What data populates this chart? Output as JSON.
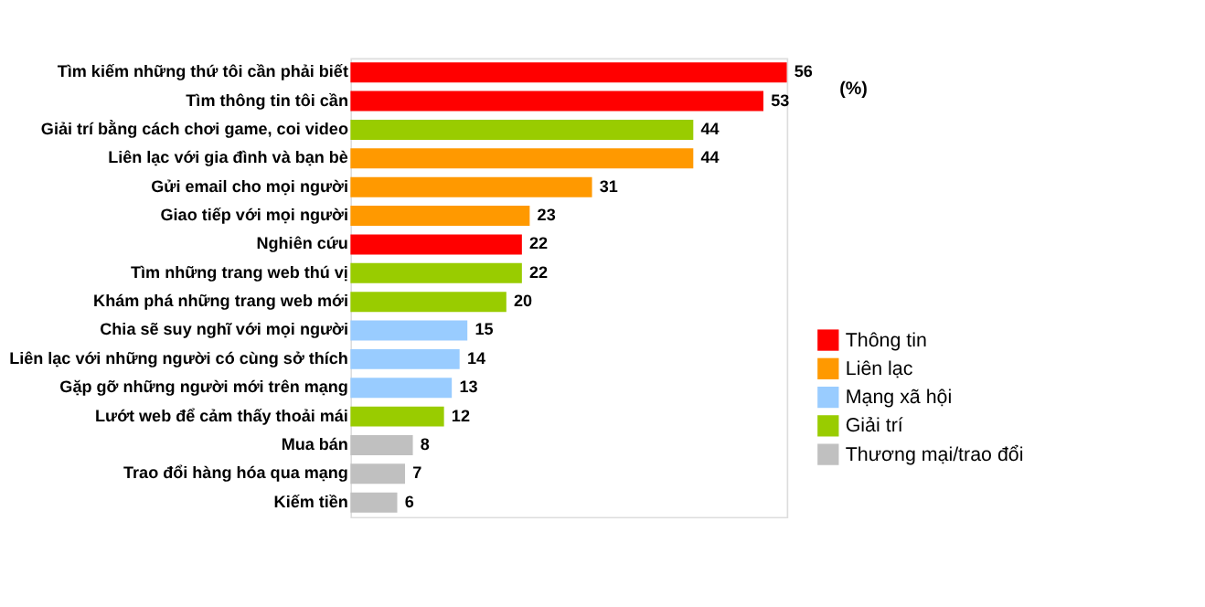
{
  "chart_data": {
    "type": "bar",
    "orientation": "horizontal",
    "categories": [
      "Tìm kiếm những thứ tôi cần phải biết",
      "Tìm thông tin tôi cần",
      "Giải trí bằng cách chơi game, coi video",
      "Liên lạc với gia đình và bạn bè",
      "Gửi email cho mọi người",
      "Giao tiếp với mọi người",
      "Nghiên cứu",
      "Tìm những trang web thú vị",
      "Khám phá những trang web mới",
      "Chia sẽ suy nghĩ với mọi người",
      "Liên lạc với những người có cùng sở thích",
      "Gặp gỡ những người mới trên mạng",
      "Lướt web để cảm thấy thoải mái",
      "Mua bán",
      "Trao đổi hàng hóa qua mạng",
      "Kiếm tiền"
    ],
    "series": [
      {
        "name": "Thông tin",
        "color": "#ff0000",
        "values": [
          56,
          53,
          null,
          null,
          null,
          null,
          22,
          null,
          null,
          null,
          null,
          null,
          null,
          null,
          null,
          null
        ]
      },
      {
        "name": "Liên lạc",
        "color": "#ff9900",
        "values": [
          null,
          null,
          null,
          44,
          31,
          23,
          null,
          null,
          null,
          null,
          null,
          null,
          null,
          null,
          null,
          null
        ]
      },
      {
        "name": "Mạng xã hội",
        "color": "#99ccff",
        "values": [
          null,
          null,
          null,
          null,
          null,
          null,
          null,
          null,
          null,
          15,
          14,
          13,
          null,
          null,
          null,
          null
        ]
      },
      {
        "name": "Giải trí",
        "color": "#99cc00",
        "values": [
          null,
          null,
          44,
          null,
          null,
          null,
          null,
          22,
          20,
          null,
          null,
          null,
          12,
          null,
          null,
          null
        ]
      },
      {
        "name": "Thương mại/trao đổi",
        "color": "#c0c0c0",
        "values": [
          null,
          null,
          null,
          null,
          null,
          null,
          null,
          null,
          null,
          null,
          null,
          null,
          null,
          8,
          7,
          6
        ]
      }
    ],
    "data_labels": true,
    "legend": "bottom right",
    "tick_labels": "y",
    "grid": false,
    "annotations": [
      "(%)"
    ]
  }
}
